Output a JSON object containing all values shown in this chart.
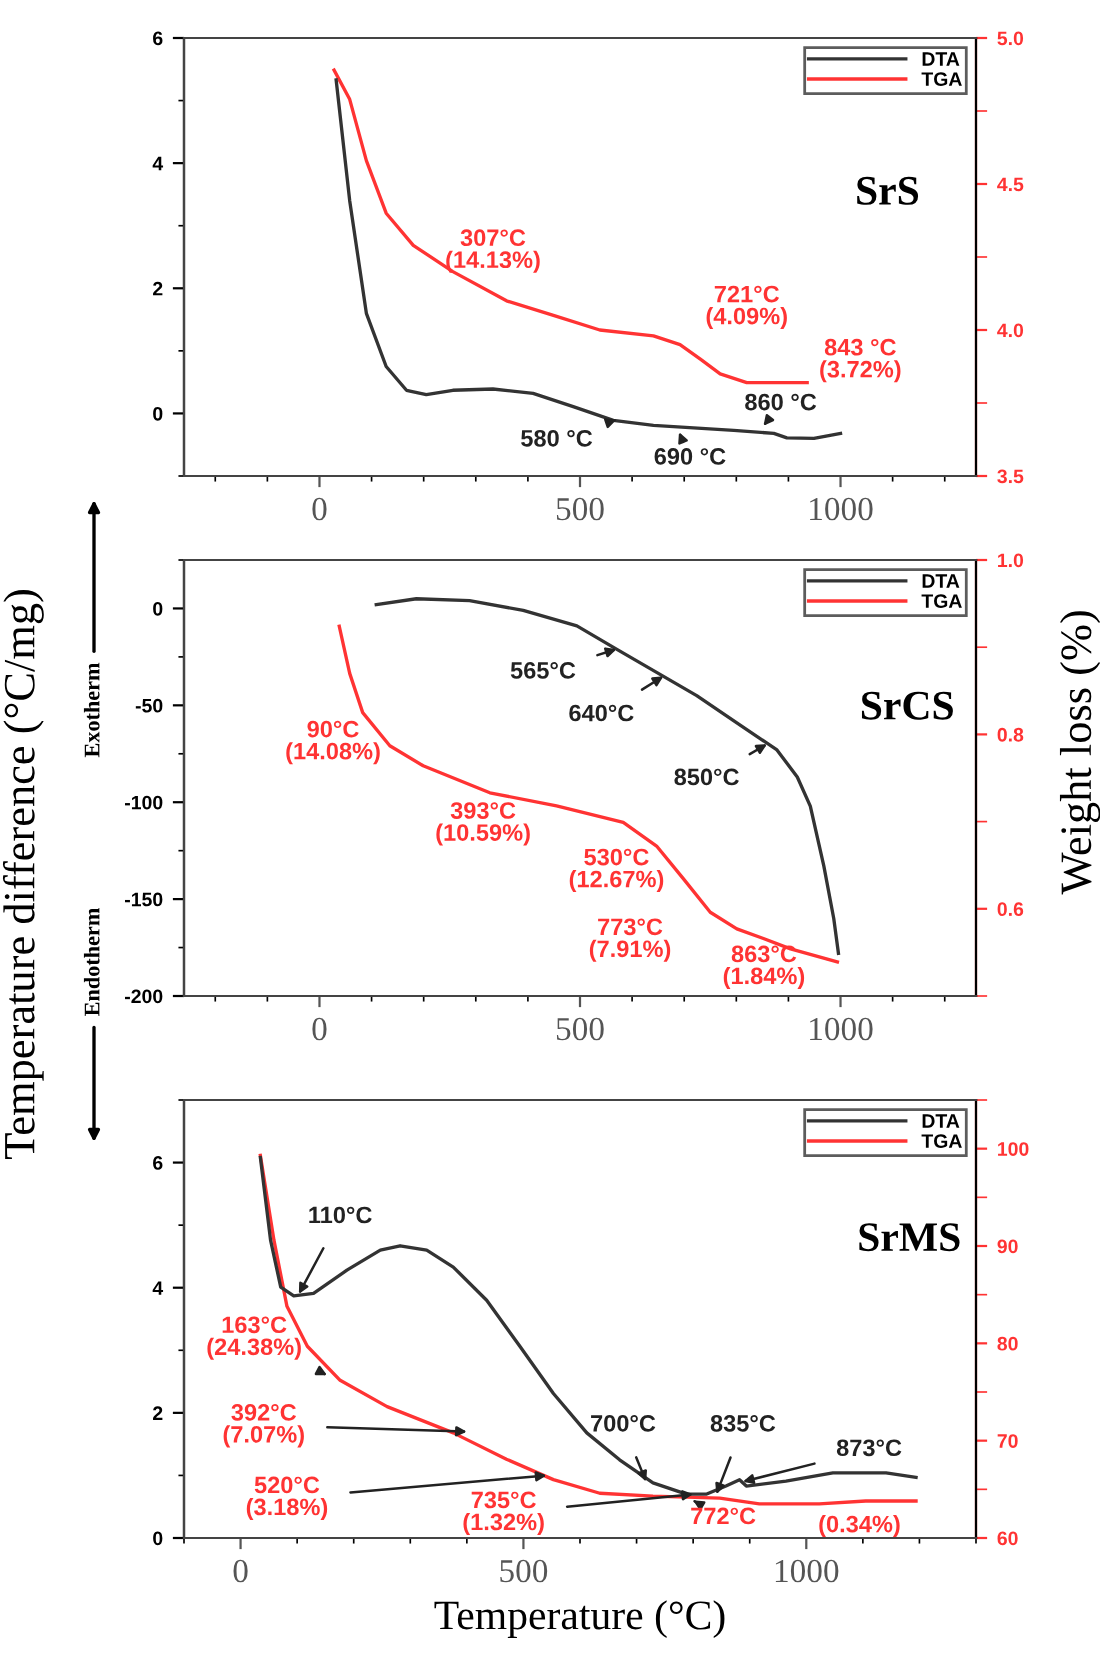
{
  "chart_data": [
    {
      "type": "line",
      "series": [
        {
          "name": "DTA",
          "color": "#333333",
          "x": [
            32,
            58,
            90,
            128,
            167,
            205,
            256,
            333,
            410,
            487,
            564,
            641,
            718,
            795,
            872,
            897,
            949,
            1000
          ],
          "values": [
            5.33,
            3.4,
            1.6,
            0.75,
            0.37,
            0.3,
            0.37,
            0.39,
            0.32,
            0.11,
            -0.11,
            -0.19,
            -0.23,
            -0.27,
            -0.32,
            -0.39,
            -0.4,
            -0.32
          ]
        },
        {
          "name": "TGA",
          "color": "#ff3333",
          "axis": "y2",
          "x": [
            28,
            58,
            90,
            128,
            180,
            256,
            359,
            449,
            538,
            641,
            692,
            731,
            769,
            820,
            872,
            936
          ],
          "values": [
            4.89,
            4.79,
            4.58,
            4.4,
            4.29,
            4.2,
            4.1,
            4.05,
            4.0,
            3.98,
            3.95,
            3.9,
            3.85,
            3.82,
            3.82,
            3.82
          ]
        }
      ],
      "xlim": [
        -260,
        1260
      ],
      "xticks": [
        0,
        500,
        1000
      ],
      "ylim": [
        -1,
        6
      ],
      "yticks": [
        0,
        2,
        4,
        6
      ],
      "y2lim": [
        3.5,
        5.0
      ],
      "y2ticks": [
        3.5,
        {
          "value": 4,
          "label": "4.0"
        },
        4.5,
        {
          "value": 5,
          "label": "5.0"
        }
      ],
      "legend": "top right",
      "grid": false,
      "annotations": [
        "307°C\n(14.13%)",
        "721°C\n(4.09%)",
        "843 °C\n(3.72%)",
        {
          "text": "580 °C",
          "x": 570,
          "y": -0.1
        },
        {
          "text": "690 °C",
          "x": 690,
          "y": -0.3
        },
        {
          "text": "860 °C",
          "x": 852,
          "y": -0.2
        },
        "SrS"
      ]
    },
    {
      "type": "line",
      "series": [
        {
          "name": "DTA",
          "color": "#333333",
          "x": [
            109,
            186,
            288,
            391,
            494,
            570,
            647,
            724,
            801,
            878,
            917,
            942,
            968,
            987,
            996
          ],
          "values": [
            2,
            5,
            4,
            -1,
            -9,
            -21,
            -33,
            -45,
            -59,
            -73,
            -87,
            -102,
            -133,
            -160,
            -178
          ]
        },
        {
          "name": "TGA",
          "color": "#ff3333",
          "axis": "y2",
          "x": [
            38,
            58,
            83,
            135,
            199,
            327,
            455,
            583,
            647,
            699,
            750,
            801,
            852,
            904,
            994
          ],
          "values": [
            0.924,
            0.87,
            0.825,
            0.787,
            0.764,
            0.733,
            0.718,
            0.699,
            0.672,
            0.634,
            0.596,
            0.577,
            0.566,
            0.554,
            0.539
          ]
        }
      ],
      "xlim": [
        -260,
        1260
      ],
      "xticks": [
        0,
        500,
        1000
      ],
      "ylim": [
        -200,
        25
      ],
      "yticks": [
        -200,
        -150,
        -100,
        -50,
        0
      ],
      "y2lim": [
        0.5,
        1.0
      ],
      "y2ticks": [
        0.6,
        0.8,
        {
          "value": 1,
          "label": "1.0"
        }
      ],
      "ylabel": "Temperature difference (°C/mg)",
      "y2label": "Weight loss (%)",
      "legend": "top right",
      "grid": false,
      "annotations": [
        {
          "text": "565°C",
          "x": 570,
          "y": -21
        },
        {
          "text": "640°C",
          "x": 660,
          "y": -35
        },
        {
          "text": "850°C",
          "x": 859,
          "y": -70
        },
        "SrCS",
        "90°C\n(14.08%)",
        "393°C\n(10.59%)",
        "530°C\n(12.67%)",
        "773°C\n(7.91%)",
        "863°C\n(1.84%)",
        "Exotherm",
        "Endotherm"
      ]
    },
    {
      "type": "line",
      "series": [
        {
          "name": "DTA",
          "color": "#333333",
          "x": [
            35,
            53,
            71,
            94,
            129,
            188,
            247,
            282,
            329,
            376,
            435,
            494,
            553,
            612,
            670,
            729,
            788,
            823,
            858,
            882,
            894,
            964,
            1047,
            1141,
            1194
          ],
          "values": [
            6.08,
            4.76,
            4.01,
            3.87,
            3.91,
            4.28,
            4.6,
            4.67,
            4.6,
            4.33,
            3.8,
            3.06,
            2.31,
            1.68,
            1.25,
            0.88,
            0.7,
            0.7,
            0.83,
            0.93,
            0.83,
            0.91,
            1.04,
            1.04,
            0.97
          ]
        },
        {
          "name": "TGA",
          "color": "#ff3333",
          "axis": "y2",
          "x": [
            35,
            59,
            82,
            118,
            176,
            259,
            376,
            470,
            553,
            635,
            729,
            847,
            917,
            1023,
            1105,
            1194
          ],
          "values": [
            99.3,
            90.6,
            83.8,
            79.7,
            76.2,
            73.5,
            70.8,
            68.1,
            66.0,
            64.6,
            64.3,
            64.1,
            63.5,
            63.5,
            63.8,
            63.8
          ]
        }
      ],
      "xlim": [
        -100,
        1300
      ],
      "xticks": [
        0,
        500,
        1000
      ],
      "ylim": [
        0,
        7
      ],
      "yticks": [
        0,
        2,
        4,
        6
      ],
      "y2lim": [
        60,
        105
      ],
      "y2ticks": [
        60,
        70,
        80,
        90,
        100
      ],
      "xlabel": "Temperature (°C)",
      "legend": "top right",
      "grid": false,
      "annotations": [
        {
          "text": "110°C",
          "x": 103,
          "y": 3.9
        },
        {
          "text": "163°C\n(24.38%)",
          "x": 153,
          "y": 2.6
        },
        {
          "text": "392°C\n(7.07%)",
          "x": 400,
          "y": 1.7
        },
        {
          "text": "520°C\n(3.18%)",
          "x": 541,
          "y": 1.0
        },
        {
          "text": "735°C\n(1.32%)",
          "x": 800,
          "y": 0.7
        },
        {
          "text": "772°C",
          "x": 800,
          "y": 0.6
        },
        "(0.34%)",
        {
          "text": "700°C",
          "x": 717,
          "y": 0.9
        },
        {
          "text": "835°C",
          "x": 841,
          "y": 0.7
        },
        {
          "text": "873°C",
          "x": 888,
          "y": 0.9
        },
        "SrMS"
      ]
    }
  ]
}
